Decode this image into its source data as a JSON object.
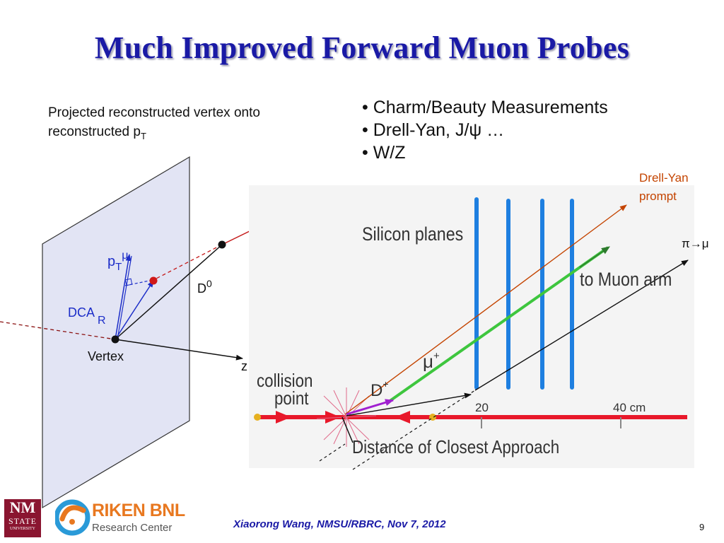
{
  "slide": {
    "title": "Much Improved Forward Muon Probes",
    "caption_line1": "Projected reconstructed vertex onto",
    "caption_line2_main": "reconstructed p",
    "caption_line2_sub": "T",
    "bullets": [
      "Charm/Beauty Measurements",
      "Drell-Yan, J/ψ …",
      "W/Z"
    ],
    "footer": "Xiaorong Wang, NMSU/RBRC, Nov 7, 2012",
    "page_number": "9"
  },
  "left_diagram": {
    "mu": "μ",
    "pt_main": "p",
    "pt_sub": "T",
    "pt_sup": "μ",
    "dca_main": "DCA",
    "dca_sub": "R",
    "d0_main": "D",
    "d0_sup": "0",
    "vertex": "Vertex",
    "z": "z"
  },
  "right_diagram": {
    "silicon_planes": "Silicon planes",
    "to_muon_arm": "to Muon arm",
    "mu_plus_main": "μ",
    "mu_plus_sup": "+",
    "d_plus_main": "D",
    "d_plus_sup": "+",
    "collision_line1": "collision",
    "collision_line2": "point",
    "tick_20": "20",
    "tick_40": "40 cm",
    "dca_label": "Distance of Closest Approach",
    "drell_yan_line1": "Drell-Yan",
    "drell_yan_line2": "prompt",
    "pi_to_mu": "π→μ"
  },
  "logos": {
    "nmsu_line1": "NM",
    "nmsu_line2": "STATE",
    "nmsu_line3": "UNIVERSITY",
    "riken_line1": "RIKEN BNL",
    "riken_line2": "Research Center"
  },
  "colors": {
    "title": "#1a1aa6",
    "plane_fill": "#e2e4f4",
    "red_axis": "#e8182a",
    "blue_planes": "#1e7fe0",
    "green_track": "#3ec63e",
    "drell_yan": "#c44400"
  }
}
